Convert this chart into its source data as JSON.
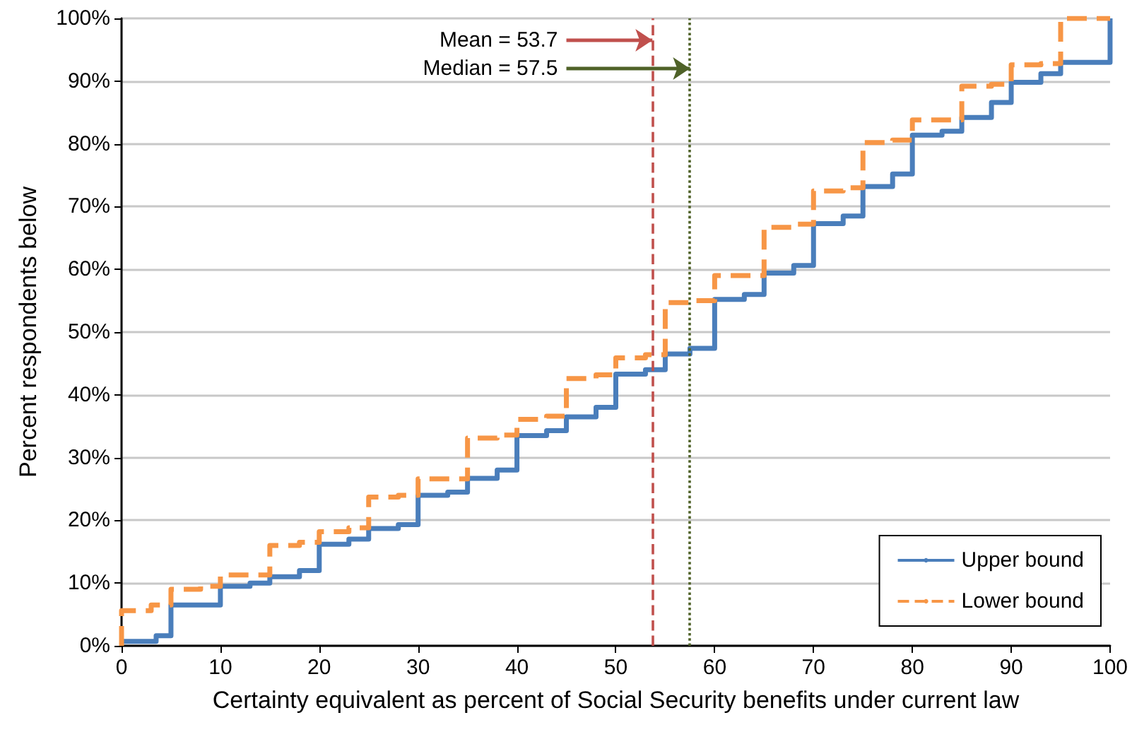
{
  "chart_data": {
    "type": "step",
    "xlabel": "Certainty equivalent as percent of Social Security benefits under current law",
    "ylabel": "Percent respondents below",
    "series": [
      {
        "name": "Upper bound",
        "color": "#4a7ebb",
        "line_style": "solid",
        "x": [
          0,
          3.5,
          5,
          10,
          13,
          15,
          18,
          20,
          23,
          25,
          28,
          30,
          33,
          35,
          38,
          40,
          43,
          45,
          48,
          50,
          53,
          55,
          57.5,
          60,
          63,
          65,
          68,
          70,
          73,
          75,
          78,
          80,
          83,
          85,
          88,
          90,
          93,
          95,
          100,
          100
        ],
        "values": [
          0.7,
          1.6,
          6.5,
          9.5,
          10,
          11,
          12,
          16.2,
          17,
          18.7,
          19.3,
          24,
          24.5,
          26.7,
          28,
          33.5,
          34.3,
          36.5,
          38,
          43.3,
          44,
          46.5,
          47.4,
          55.2,
          56,
          59.4,
          60.6,
          67.3,
          68.5,
          73.2,
          75.2,
          81.4,
          82,
          84.2,
          86.6,
          89.8,
          91.2,
          93,
          93.5,
          100
        ]
      },
      {
        "name": "Lower bound",
        "color": "#f79646",
        "line_style": "dashed",
        "x": [
          0,
          0,
          3,
          5,
          8,
          10,
          15,
          18,
          20,
          23,
          25,
          28,
          30,
          35,
          38,
          40,
          43,
          45,
          48,
          50,
          53,
          55,
          58,
          60,
          65,
          68,
          70,
          73,
          75,
          78,
          80,
          85,
          88,
          90,
          93,
          95,
          100
        ],
        "values": [
          0,
          5.6,
          6.5,
          9,
          9.5,
          11.3,
          16,
          16.5,
          18.2,
          18.8,
          23.7,
          24,
          26.6,
          33.1,
          33.6,
          36.1,
          36.6,
          42.6,
          43.2,
          45.9,
          46.4,
          54.7,
          55,
          59,
          66.7,
          67.2,
          72.5,
          73,
          80.2,
          80.6,
          83.8,
          89.2,
          89.5,
          92.6,
          92.8,
          100,
          100
        ]
      }
    ],
    "ref_lines": [
      {
        "axis": "x",
        "value": 53.7,
        "label": "Mean = 53.7",
        "color": "#c0504d",
        "line_style": "dashed"
      },
      {
        "axis": "x",
        "value": 57.5,
        "label": "Median = 57.5",
        "color": "#4f6228",
        "line_style": "dotted"
      }
    ],
    "xlim": [
      0,
      100
    ],
    "xticks": [
      0,
      10,
      20,
      30,
      40,
      50,
      60,
      70,
      80,
      90,
      100
    ],
    "ylim": [
      0,
      100
    ],
    "yticks": [
      {
        "value": 0,
        "label": "0%"
      },
      {
        "value": 10,
        "label": "10%"
      },
      {
        "value": 20,
        "label": "20%"
      },
      {
        "value": 30,
        "label": "30%"
      },
      {
        "value": 40,
        "label": "40%"
      },
      {
        "value": 50,
        "label": "50%"
      },
      {
        "value": 60,
        "label": "60%"
      },
      {
        "value": 70,
        "label": "70%"
      },
      {
        "value": 80,
        "label": "80%"
      },
      {
        "value": 90,
        "label": "90%"
      },
      {
        "value": 100,
        "label": "100%"
      }
    ],
    "grid": "y",
    "legend": "bottom right",
    "marker": "none"
  }
}
